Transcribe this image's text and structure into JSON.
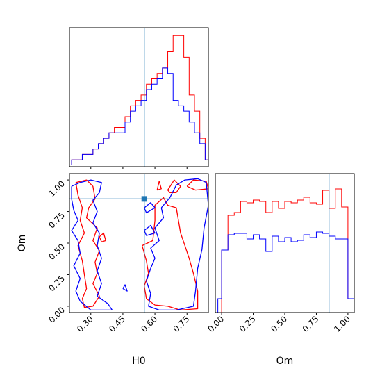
{
  "chart_data": [
    {
      "type": "histogram",
      "panel": "H0 marginal",
      "parameter": "H0",
      "xlim": [
        0.2,
        0.85
      ],
      "truth": 0.55,
      "bins": [
        0.21,
        0.235,
        0.26,
        0.285,
        0.31,
        0.335,
        0.36,
        0.385,
        0.41,
        0.435,
        0.46,
        0.485,
        0.51,
        0.535,
        0.56,
        0.585,
        0.61,
        0.635,
        0.66,
        0.685,
        0.71,
        0.735,
        0.76,
        0.785,
        0.81,
        0.835,
        0.85
      ],
      "series": [
        {
          "color": "#ff0000",
          "counts": [
            1,
            1,
            2,
            2,
            3,
            4,
            5,
            6,
            7,
            7,
            9,
            11,
            12,
            13,
            15,
            16,
            17,
            18,
            21,
            24,
            24,
            20,
            13,
            10,
            5,
            1
          ]
        },
        {
          "color": "#0000ff",
          "counts": [
            1,
            1,
            2,
            2,
            3,
            4,
            5,
            6,
            6,
            6,
            8,
            10,
            11,
            12,
            14,
            15,
            16,
            18,
            17,
            12,
            11,
            10,
            8,
            6,
            4,
            1
          ]
        }
      ]
    },
    {
      "type": "histogram",
      "panel": "Om marginal",
      "parameter": "Om",
      "xlabel": "Om",
      "xlim": [
        -0.05,
        1.05
      ],
      "truth": 0.85,
      "ticks": [
        "0.00",
        "0.25",
        "0.50",
        "0.75",
        "1.00"
      ],
      "bins": [
        -0.03,
        0.0,
        0.05,
        0.1,
        0.15,
        0.2,
        0.25,
        0.3,
        0.35,
        0.4,
        0.45,
        0.5,
        0.55,
        0.6,
        0.65,
        0.7,
        0.75,
        0.8,
        0.85,
        0.9,
        0.95,
        1.0,
        1.05
      ],
      "series": [
        {
          "color": "#ff0000",
          "counts": [
            0,
            4.5,
            7.0,
            7.2,
            8.0,
            7.9,
            8.1,
            8.0,
            7.2,
            8.0,
            7.5,
            8.0,
            7.9,
            8.1,
            8.3,
            7.9,
            7.8,
            8.8,
            7.5,
            8.9,
            7.6,
            1.0
          ]
        },
        {
          "color": "#0000ff",
          "counts": [
            1.0,
            4.5,
            5.6,
            5.7,
            5.7,
            5.3,
            5.6,
            5.3,
            4.4,
            5.5,
            5.1,
            5.4,
            5.1,
            5.2,
            5.6,
            5.4,
            5.8,
            5.7,
            5.5,
            5.3,
            5.3,
            1.0
          ]
        }
      ]
    },
    {
      "type": "contour",
      "panel": "2D joint",
      "xlabel": "H0",
      "ylabel": "Om",
      "xlim": [
        0.2,
        0.85
      ],
      "ylim": [
        -0.05,
        1.05
      ],
      "xticks": [
        "0.30",
        "0.45",
        "0.60",
        "0.75"
      ],
      "yticks": [
        "0.00",
        "0.25",
        "0.50",
        "0.75",
        "1.00"
      ],
      "truth": [
        0.55,
        0.85
      ],
      "series": [
        {
          "color": "#ff0000",
          "paths": [
            [
              [
                0.23,
                0.98
              ],
              [
                0.28,
                1.0
              ],
              [
                0.31,
                0.95
              ],
              [
                0.32,
                0.85
              ],
              [
                0.29,
                0.78
              ],
              [
                0.28,
                0.7
              ],
              [
                0.33,
                0.62
              ],
              [
                0.31,
                0.52
              ],
              [
                0.34,
                0.44
              ],
              [
                0.32,
                0.35
              ],
              [
                0.33,
                0.26
              ],
              [
                0.31,
                0.18
              ],
              [
                0.34,
                0.08
              ],
              [
                0.31,
                0.0
              ],
              [
                0.27,
                -0.01
              ],
              [
                0.26,
                0.06
              ],
              [
                0.28,
                0.14
              ],
              [
                0.27,
                0.25
              ],
              [
                0.26,
                0.36
              ],
              [
                0.24,
                0.48
              ],
              [
                0.27,
                0.58
              ],
              [
                0.25,
                0.68
              ],
              [
                0.26,
                0.78
              ],
              [
                0.24,
                0.88
              ],
              [
                0.23,
                0.98
              ]
            ],
            [
              [
                0.54,
                0.48
              ],
              [
                0.59,
                0.52
              ],
              [
                0.6,
                0.68
              ],
              [
                0.6,
                0.8
              ],
              [
                0.64,
                0.86
              ],
              [
                0.66,
                0.8
              ],
              [
                0.7,
                0.78
              ],
              [
                0.71,
                0.68
              ],
              [
                0.72,
                0.58
              ],
              [
                0.74,
                0.48
              ],
              [
                0.76,
                0.38
              ],
              [
                0.78,
                0.26
              ],
              [
                0.8,
                0.12
              ],
              [
                0.8,
                -0.02
              ],
              [
                0.72,
                -0.03
              ],
              [
                0.66,
                0.0
              ],
              [
                0.6,
                0.01
              ],
              [
                0.56,
                0.06
              ],
              [
                0.55,
                0.16
              ],
              [
                0.57,
                0.26
              ],
              [
                0.56,
                0.36
              ],
              [
                0.54,
                0.48
              ]
            ],
            [
              [
                0.66,
                0.92
              ],
              [
                0.69,
                1.0
              ],
              [
                0.72,
                0.95
              ],
              [
                0.7,
                0.9
              ],
              [
                0.67,
                0.9
              ],
              [
                0.66,
                0.92
              ]
            ],
            [
              [
                0.75,
                0.95
              ],
              [
                0.78,
                1.0
              ],
              [
                0.84,
                0.99
              ],
              [
                0.85,
                0.93
              ],
              [
                0.79,
                0.92
              ],
              [
                0.75,
                0.95
              ]
            ],
            [
              [
                0.61,
                0.92
              ],
              [
                0.62,
                0.99
              ],
              [
                0.63,
                0.93
              ],
              [
                0.61,
                0.92
              ]
            ],
            [
              [
                0.34,
                0.55
              ],
              [
                0.36,
                0.58
              ],
              [
                0.37,
                0.52
              ],
              [
                0.35,
                0.51
              ],
              [
                0.34,
                0.55
              ]
            ]
          ]
        },
        {
          "color": "#0000ff",
          "paths": [
            [
              [
                0.21,
                0.95
              ],
              [
                0.25,
                0.98
              ],
              [
                0.3,
                1.0
              ],
              [
                0.35,
                0.98
              ],
              [
                0.34,
                0.9
              ],
              [
                0.31,
                0.84
              ],
              [
                0.33,
                0.75
              ],
              [
                0.31,
                0.66
              ],
              [
                0.34,
                0.58
              ],
              [
                0.33,
                0.48
              ],
              [
                0.35,
                0.38
              ],
              [
                0.33,
                0.28
              ],
              [
                0.35,
                0.18
              ],
              [
                0.33,
                0.08
              ],
              [
                0.38,
                0.02
              ],
              [
                0.4,
                -0.03
              ],
              [
                0.3,
                -0.03
              ],
              [
                0.25,
                0.04
              ],
              [
                0.23,
                0.12
              ],
              [
                0.25,
                0.22
              ],
              [
                0.22,
                0.32
              ],
              [
                0.25,
                0.42
              ],
              [
                0.24,
                0.52
              ],
              [
                0.21,
                0.6
              ],
              [
                0.24,
                0.68
              ],
              [
                0.22,
                0.76
              ],
              [
                0.21,
                0.85
              ],
              [
                0.21,
                0.95
              ]
            ],
            [
              [
                0.63,
                0.78
              ],
              [
                0.67,
                0.86
              ],
              [
                0.7,
                0.96
              ],
              [
                0.74,
                1.0
              ],
              [
                0.8,
                1.01
              ],
              [
                0.84,
                0.98
              ],
              [
                0.85,
                0.8
              ],
              [
                0.83,
                0.62
              ],
              [
                0.82,
                0.45
              ],
              [
                0.8,
                0.3
              ],
              [
                0.79,
                0.12
              ],
              [
                0.78,
                0.0
              ],
              [
                0.7,
                -0.03
              ],
              [
                0.62,
                -0.03
              ],
              [
                0.57,
                0.0
              ],
              [
                0.58,
                0.1
              ],
              [
                0.56,
                0.2
              ],
              [
                0.58,
                0.3
              ],
              [
                0.6,
                0.38
              ],
              [
                0.58,
                0.46
              ],
              [
                0.62,
                0.52
              ],
              [
                0.6,
                0.62
              ],
              [
                0.64,
                0.7
              ],
              [
                0.63,
                0.78
              ]
            ],
            [
              [
                0.55,
                0.78
              ],
              [
                0.58,
                0.82
              ],
              [
                0.6,
                0.78
              ],
              [
                0.56,
                0.74
              ],
              [
                0.55,
                0.78
              ]
            ],
            [
              [
                0.55,
                0.6
              ],
              [
                0.58,
                0.64
              ],
              [
                0.6,
                0.58
              ],
              [
                0.56,
                0.56
              ],
              [
                0.55,
                0.6
              ]
            ],
            [
              [
                0.45,
                0.14
              ],
              [
                0.46,
                0.17
              ],
              [
                0.47,
                0.12
              ],
              [
                0.45,
                0.14
              ]
            ]
          ]
        }
      ]
    }
  ]
}
